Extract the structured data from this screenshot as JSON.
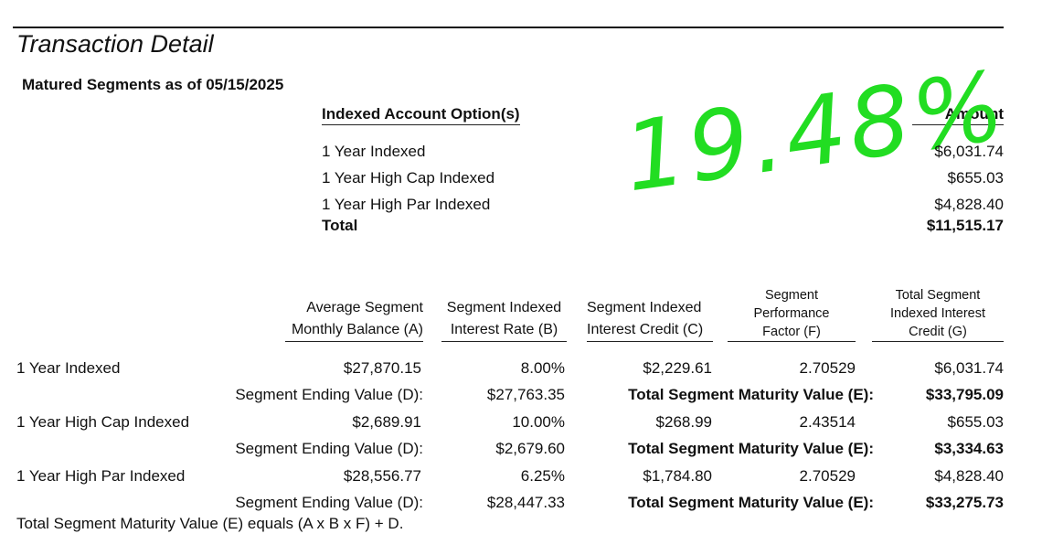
{
  "header": {
    "title": "Transaction Detail",
    "subtitle": "Matured Segments as of 05/15/2025"
  },
  "summary": {
    "header_option": "Indexed Account Option(s)",
    "header_amount": "Amount",
    "rows": [
      [
        "1 Year Indexed",
        "$6,031.74"
      ],
      [
        "1 Year High Cap Indexed",
        "$655.03"
      ],
      [
        "1 Year High Par Indexed",
        "$4,828.40"
      ]
    ],
    "total": [
      "Total",
      "$11,515.17"
    ]
  },
  "annotation": "19.48%",
  "detail": {
    "columns": [
      [
        "Average Segment",
        "Monthly Balance (A)"
      ],
      [
        "Segment Indexed",
        "Interest Rate (B)"
      ],
      [
        "Segment Indexed",
        "Interest Credit (C)"
      ],
      [
        "Segment",
        "Performance",
        "Factor (F)"
      ],
      [
        "Total Segment",
        "Indexed Interest",
        "Credit (G)"
      ]
    ],
    "rows": [
      {
        "name": "1 Year Indexed",
        "values": [
          "$27,870.15",
          "8.00%",
          "$2,229.61",
          "2.70529",
          "$6,031.74"
        ],
        "ending_label": "Segment Ending Value (D):",
        "ending_value": "$27,763.35",
        "maturity_label": "Total Segment Maturity Value (E):",
        "maturity_value": "$33,795.09"
      },
      {
        "name": "1 Year High Cap Indexed",
        "values": [
          "$2,689.91",
          "10.00%",
          "$268.99",
          "2.43514",
          "$655.03"
        ],
        "ending_label": "Segment Ending Value (D):",
        "ending_value": "$2,679.60",
        "maturity_label": "Total Segment Maturity Value (E):",
        "maturity_value": "$3,334.63"
      },
      {
        "name": "1 Year High Par Indexed",
        "values": [
          "$28,556.77",
          "6.25%",
          "$1,784.80",
          "2.70529",
          "$4,828.40"
        ],
        "ending_label": "Segment Ending Value (D):",
        "ending_value": "$28,447.33",
        "maturity_label": "Total Segment Maturity Value (E):",
        "maturity_value": "$33,275.73"
      }
    ]
  },
  "footnote": "Total Segment Maturity Value (E) equals (A x B x F) + D."
}
